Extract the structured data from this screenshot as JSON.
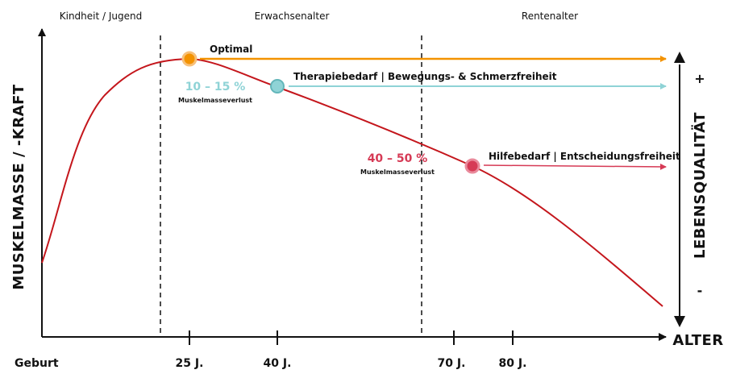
{
  "phases": {
    "childhood": "Kindheit / Jugend",
    "adulthood": "Erwachsenalter",
    "retirement": "Rentenalter"
  },
  "axes": {
    "y_label": "MUSKELMASSE / -KRAFT",
    "x_label": "ALTER",
    "right_label": "LEBENSQUALITÄT",
    "plus": "+",
    "minus": "-"
  },
  "ticks": {
    "birth": "Geburt",
    "t25": "25 J.",
    "t40": "40 J.",
    "t70": "70 J.",
    "t80": "80 J."
  },
  "annotations": {
    "optimal": "Optimal",
    "therapy": "Therapiebedarf | Bewegungs- & Schmerzfreiheit",
    "help": "Hilfebedarf | Entscheidungsfreiheit",
    "loss1_pct": "10 – 15 %",
    "loss1_label": "Muskelmasseverlust",
    "loss2_pct": "40 – 50 %",
    "loss2_label": "Muskelmasseverlust"
  },
  "colors": {
    "curve": "#c4161c",
    "optimal": "#f39200",
    "therapy": "#8fd3d6",
    "help": "#d63a55",
    "loss1_text": "#8fd3d6",
    "loss2_text": "#d63a55"
  }
}
